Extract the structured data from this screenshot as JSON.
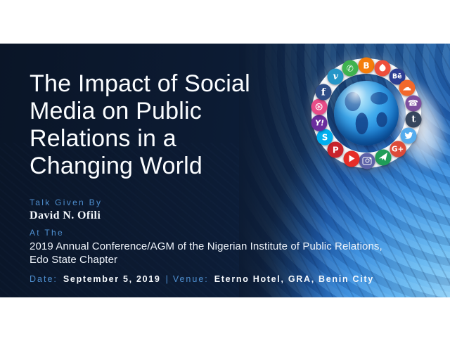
{
  "slide": {
    "title_lines": [
      "The Impact of Social",
      "Media on Public",
      "Relations in a",
      "Changing World"
    ],
    "speaker": {
      "label": "Talk Given By",
      "name": "David N. Ofili"
    },
    "event": {
      "label": "At The",
      "line1": "2019 Annual Conference/AGM of the Nigerian Institute of Public Relations,",
      "line2": "Edo State Chapter"
    },
    "footer": {
      "date_label": "Date:",
      "date_value": "September 5, 2019",
      "separator": "|",
      "venue_label": "Venue:",
      "venue_value": "Eterno Hotel, GRA, Benin City"
    },
    "colors": {
      "background_navy": "#0c1b33",
      "accent_blue": "#4e8fd0",
      "text_white": "#f4f8fd",
      "swirl_light_blue": "#6cbcf2"
    }
  },
  "globe_graphic": {
    "icons": [
      {
        "name": "blogger-icon",
        "color": "#f57d0a",
        "angle": 0,
        "shape": "text",
        "glyph": "B"
      },
      {
        "name": "tinder-icon",
        "color": "#ee4f3c",
        "angle": 20,
        "shape": "flame",
        "glyph": ""
      },
      {
        "name": "behance-icon",
        "color": "#2c3e93",
        "angle": 40,
        "shape": "text",
        "glyph": "Bē"
      },
      {
        "name": "soundcloud-icon",
        "color": "#f2692c",
        "angle": 58,
        "shape": "text",
        "glyph": "☁"
      },
      {
        "name": "viber-icon",
        "color": "#7d4e9e",
        "angle": 78,
        "shape": "text",
        "glyph": "☎"
      },
      {
        "name": "tumblr-icon",
        "color": "#36465d",
        "angle": 98,
        "shape": "text",
        "glyph": "t"
      },
      {
        "name": "twitter-icon",
        "color": "#55acee",
        "angle": 118,
        "shape": "bird",
        "glyph": ""
      },
      {
        "name": "googleplus-icon",
        "color": "#dd4b39",
        "angle": 139,
        "shape": "text",
        "glyph": "G+"
      },
      {
        "name": "paper-plane-icon",
        "color": "#1f9d58",
        "angle": 159,
        "shape": "plane",
        "glyph": ""
      },
      {
        "name": "instagram-icon",
        "color": "#5d62a8",
        "angle": 179,
        "shape": "camera",
        "glyph": ""
      },
      {
        "name": "youtube-icon",
        "color": "#e52d27",
        "angle": 198,
        "shape": "play",
        "glyph": ""
      },
      {
        "name": "pinterest-icon",
        "color": "#c8232c",
        "angle": 220,
        "shape": "text",
        "glyph": "P"
      },
      {
        "name": "skype-icon",
        "color": "#00aff0",
        "angle": 240,
        "shape": "text",
        "glyph": "S"
      },
      {
        "name": "yahoo-icon",
        "color": "#6b2d9e",
        "angle": 258,
        "shape": "text",
        "glyph": "Y!"
      },
      {
        "name": "dribbble-icon",
        "color": "#e84c88",
        "angle": 278,
        "shape": "text",
        "glyph": "⊛"
      },
      {
        "name": "facebook-icon",
        "color": "#2e4d87",
        "angle": 296,
        "shape": "text",
        "glyph": "f"
      },
      {
        "name": "vimeo-icon",
        "color": "#2596c8",
        "angle": 320,
        "shape": "text",
        "glyph": "v"
      },
      {
        "name": "whatsapp-icon",
        "color": "#3fb34f",
        "angle": 340,
        "shape": "text",
        "glyph": "✆"
      }
    ]
  }
}
